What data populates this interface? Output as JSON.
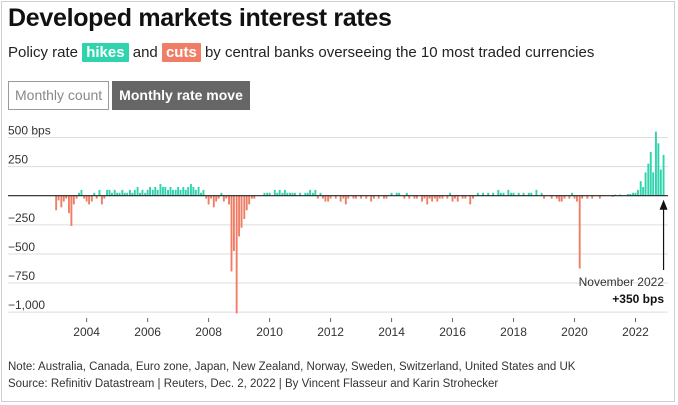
{
  "header": {
    "title": "Developed markets interest rates",
    "subtitle_before": "Policy rate",
    "hikes_label": "hikes",
    "and_word": "and",
    "cuts_label": "cuts",
    "subtitle_after": "by central banks overseeing the 10 most traded currencies"
  },
  "tabs": [
    {
      "label": "Monthly count",
      "active": false
    },
    {
      "label": "Monthly rate move",
      "active": true
    }
  ],
  "colors": {
    "hike": "#2fd3ac",
    "cut": "#f07d66",
    "gridline": "#dddddd",
    "zero": "#222222"
  },
  "chart_data": {
    "type": "bar",
    "title": "",
    "xlabel": "",
    "ylabel": "",
    "unit": "bps",
    "ylim": [
      -1050,
      650
    ],
    "xlim": [
      2002.7,
      2023.0
    ],
    "yticks": [
      500,
      250,
      0,
      -250,
      -500,
      -750,
      -1000
    ],
    "ytick_labels": [
      "500 bps",
      "250",
      "",
      "−250",
      "−500",
      "−750",
      "−1,000"
    ],
    "xticks": [
      2004,
      2006,
      2008,
      2010,
      2012,
      2014,
      2016,
      2018,
      2020,
      2022
    ],
    "xtick_labels": [
      "2004",
      "2006",
      "2008",
      "2010",
      "2012",
      "2014",
      "2016",
      "2018",
      "2020",
      "2022"
    ],
    "grid": true,
    "legend": "none",
    "bars": [
      {
        "t": 2003.0,
        "v": -125
      },
      {
        "t": 2003.08,
        "v": -40
      },
      {
        "t": 2003.17,
        "v": -100
      },
      {
        "t": 2003.25,
        "v": -50
      },
      {
        "t": 2003.33,
        "v": -25
      },
      {
        "t": 2003.42,
        "v": -150
      },
      {
        "t": 2003.5,
        "v": -260
      },
      {
        "t": 2003.58,
        "v": -75
      },
      {
        "t": 2003.67,
        "v": -25
      },
      {
        "t": 2003.75,
        "v": 25
      },
      {
        "t": 2003.83,
        "v": 50
      },
      {
        "t": 2003.92,
        "v": -25
      },
      {
        "t": 2004.0,
        "v": -50
      },
      {
        "t": 2004.08,
        "v": -75
      },
      {
        "t": 2004.17,
        "v": -50
      },
      {
        "t": 2004.25,
        "v": 25
      },
      {
        "t": 2004.33,
        "v": -25
      },
      {
        "t": 2004.42,
        "v": 50
      },
      {
        "t": 2004.5,
        "v": -75
      },
      {
        "t": 2004.58,
        "v": -25
      },
      {
        "t": 2004.67,
        "v": 50
      },
      {
        "t": 2004.75,
        "v": 50
      },
      {
        "t": 2004.83,
        "v": 25
      },
      {
        "t": 2004.92,
        "v": 50
      },
      {
        "t": 2005.0,
        "v": 25
      },
      {
        "t": 2005.08,
        "v": 25
      },
      {
        "t": 2005.17,
        "v": 50
      },
      {
        "t": 2005.25,
        "v": 25
      },
      {
        "t": 2005.33,
        "v": 25
      },
      {
        "t": 2005.42,
        "v": 50
      },
      {
        "t": 2005.5,
        "v": 25
      },
      {
        "t": 2005.58,
        "v": 50
      },
      {
        "t": 2005.67,
        "v": 75
      },
      {
        "t": 2005.75,
        "v": 25
      },
      {
        "t": 2005.83,
        "v": 50
      },
      {
        "t": 2005.92,
        "v": 25
      },
      {
        "t": 2006.0,
        "v": 50
      },
      {
        "t": 2006.08,
        "v": 75
      },
      {
        "t": 2006.17,
        "v": 50
      },
      {
        "t": 2006.25,
        "v": 75
      },
      {
        "t": 2006.33,
        "v": 50
      },
      {
        "t": 2006.42,
        "v": 100
      },
      {
        "t": 2006.5,
        "v": 75
      },
      {
        "t": 2006.58,
        "v": 75
      },
      {
        "t": 2006.67,
        "v": 50
      },
      {
        "t": 2006.75,
        "v": 75
      },
      {
        "t": 2006.83,
        "v": 50
      },
      {
        "t": 2006.92,
        "v": 50
      },
      {
        "t": 2007.0,
        "v": 75
      },
      {
        "t": 2007.08,
        "v": 50
      },
      {
        "t": 2007.17,
        "v": 75
      },
      {
        "t": 2007.25,
        "v": 50
      },
      {
        "t": 2007.33,
        "v": 75
      },
      {
        "t": 2007.42,
        "v": 100
      },
      {
        "t": 2007.5,
        "v": 75
      },
      {
        "t": 2007.58,
        "v": 50
      },
      {
        "t": 2007.67,
        "v": 75
      },
      {
        "t": 2007.75,
        "v": 25
      },
      {
        "t": 2007.83,
        "v": 50
      },
      {
        "t": 2007.92,
        "v": -25
      },
      {
        "t": 2008.0,
        "v": -75
      },
      {
        "t": 2008.08,
        "v": -25
      },
      {
        "t": 2008.17,
        "v": -100
      },
      {
        "t": 2008.25,
        "v": -50
      },
      {
        "t": 2008.33,
        "v": -25
      },
      {
        "t": 2008.42,
        "v": 25
      },
      {
        "t": 2008.5,
        "v": -50
      },
      {
        "t": 2008.58,
        "v": -25
      },
      {
        "t": 2008.67,
        "v": -75
      },
      {
        "t": 2008.75,
        "v": -650
      },
      {
        "t": 2008.83,
        "v": -475
      },
      {
        "t": 2008.92,
        "v": -1010
      },
      {
        "t": 2009.0,
        "v": -350
      },
      {
        "t": 2009.08,
        "v": -275
      },
      {
        "t": 2009.17,
        "v": -200
      },
      {
        "t": 2009.25,
        "v": -125
      },
      {
        "t": 2009.33,
        "v": -75
      },
      {
        "t": 2009.42,
        "v": -25
      },
      {
        "t": 2009.5,
        "v": -25
      },
      {
        "t": 2009.83,
        "v": 25
      },
      {
        "t": 2009.92,
        "v": 25
      },
      {
        "t": 2010.0,
        "v": 25
      },
      {
        "t": 2010.17,
        "v": 50
      },
      {
        "t": 2010.25,
        "v": 25
      },
      {
        "t": 2010.33,
        "v": 50
      },
      {
        "t": 2010.42,
        "v": 25
      },
      {
        "t": 2010.5,
        "v": 50
      },
      {
        "t": 2010.58,
        "v": 25
      },
      {
        "t": 2010.67,
        "v": 25
      },
      {
        "t": 2010.75,
        "v": 25
      },
      {
        "t": 2010.83,
        "v": 25
      },
      {
        "t": 2011.0,
        "v": 25
      },
      {
        "t": 2011.17,
        "v": 25
      },
      {
        "t": 2011.25,
        "v": 25
      },
      {
        "t": 2011.33,
        "v": 50
      },
      {
        "t": 2011.42,
        "v": 25
      },
      {
        "t": 2011.5,
        "v": 50
      },
      {
        "t": 2011.58,
        "v": -25
      },
      {
        "t": 2011.67,
        "v": 25
      },
      {
        "t": 2011.75,
        "v": -25
      },
      {
        "t": 2011.83,
        "v": -50
      },
      {
        "t": 2011.92,
        "v": -50
      },
      {
        "t": 2012.0,
        "v": -25
      },
      {
        "t": 2012.17,
        "v": -25
      },
      {
        "t": 2012.33,
        "v": -50
      },
      {
        "t": 2012.42,
        "v": -25
      },
      {
        "t": 2012.5,
        "v": -75
      },
      {
        "t": 2012.58,
        "v": -25
      },
      {
        "t": 2012.75,
        "v": -25
      },
      {
        "t": 2012.83,
        "v": -25
      },
      {
        "t": 2013.0,
        "v": -25
      },
      {
        "t": 2013.17,
        "v": -25
      },
      {
        "t": 2013.33,
        "v": -50
      },
      {
        "t": 2013.42,
        "v": -25
      },
      {
        "t": 2013.58,
        "v": -25
      },
      {
        "t": 2013.75,
        "v": -25
      },
      {
        "t": 2013.83,
        "v": -25
      },
      {
        "t": 2014.0,
        "v": 25
      },
      {
        "t": 2014.17,
        "v": 25
      },
      {
        "t": 2014.25,
        "v": 25
      },
      {
        "t": 2014.42,
        "v": -25
      },
      {
        "t": 2014.5,
        "v": 25
      },
      {
        "t": 2014.58,
        "v": -25
      },
      {
        "t": 2014.75,
        "v": -25
      },
      {
        "t": 2014.83,
        "v": -25
      },
      {
        "t": 2015.0,
        "v": -50
      },
      {
        "t": 2015.08,
        "v": -25
      },
      {
        "t": 2015.17,
        "v": -75
      },
      {
        "t": 2015.25,
        "v": -25
      },
      {
        "t": 2015.33,
        "v": -50
      },
      {
        "t": 2015.42,
        "v": -25
      },
      {
        "t": 2015.5,
        "v": -50
      },
      {
        "t": 2015.58,
        "v": -25
      },
      {
        "t": 2015.67,
        "v": -25
      },
      {
        "t": 2015.83,
        "v": -25
      },
      {
        "t": 2015.92,
        "v": 25
      },
      {
        "t": 2016.0,
        "v": -50
      },
      {
        "t": 2016.08,
        "v": -25
      },
      {
        "t": 2016.17,
        "v": -50
      },
      {
        "t": 2016.33,
        "v": -25
      },
      {
        "t": 2016.42,
        "v": -25
      },
      {
        "t": 2016.58,
        "v": -75
      },
      {
        "t": 2016.67,
        "v": -25
      },
      {
        "t": 2016.83,
        "v": 25
      },
      {
        "t": 2017.0,
        "v": 25
      },
      {
        "t": 2017.17,
        "v": 25
      },
      {
        "t": 2017.33,
        "v": 25
      },
      {
        "t": 2017.5,
        "v": 50
      },
      {
        "t": 2017.58,
        "v": 25
      },
      {
        "t": 2017.67,
        "v": 25
      },
      {
        "t": 2017.83,
        "v": 50
      },
      {
        "t": 2017.92,
        "v": 25
      },
      {
        "t": 2018.0,
        "v": 25
      },
      {
        "t": 2018.17,
        "v": 25
      },
      {
        "t": 2018.33,
        "v": 25
      },
      {
        "t": 2018.5,
        "v": 25
      },
      {
        "t": 2018.58,
        "v": 25
      },
      {
        "t": 2018.75,
        "v": 50
      },
      {
        "t": 2018.92,
        "v": 25
      },
      {
        "t": 2019.0,
        "v": -25
      },
      {
        "t": 2019.25,
        "v": -25
      },
      {
        "t": 2019.42,
        "v": -25
      },
      {
        "t": 2019.5,
        "v": -50
      },
      {
        "t": 2019.58,
        "v": -50
      },
      {
        "t": 2019.67,
        "v": -25
      },
      {
        "t": 2019.83,
        "v": -25
      },
      {
        "t": 2019.92,
        "v": 25
      },
      {
        "t": 2020.0,
        "v": -25
      },
      {
        "t": 2020.08,
        "v": -50
      },
      {
        "t": 2020.17,
        "v": -625
      },
      {
        "t": 2020.25,
        "v": -25
      },
      {
        "t": 2020.42,
        "v": -25
      },
      {
        "t": 2020.58,
        "v": -25
      },
      {
        "t": 2020.83,
        "v": -25
      },
      {
        "t": 2021.25,
        "v": -10
      },
      {
        "t": 2021.33,
        "v": 10
      },
      {
        "t": 2021.5,
        "v": 10
      },
      {
        "t": 2021.75,
        "v": 15
      },
      {
        "t": 2021.83,
        "v": 15
      },
      {
        "t": 2021.92,
        "v": 25
      },
      {
        "t": 2022.0,
        "v": 25
      },
      {
        "t": 2022.08,
        "v": 50
      },
      {
        "t": 2022.17,
        "v": 125
      },
      {
        "t": 2022.25,
        "v": 75
      },
      {
        "t": 2022.33,
        "v": 200
      },
      {
        "t": 2022.42,
        "v": 275
      },
      {
        "t": 2022.5,
        "v": 375
      },
      {
        "t": 2022.58,
        "v": 200
      },
      {
        "t": 2022.67,
        "v": 550
      },
      {
        "t": 2022.75,
        "v": 450
      },
      {
        "t": 2022.83,
        "v": 225
      },
      {
        "t": 2022.92,
        "v": 350
      }
    ],
    "annotation": {
      "label": "November 2022",
      "value_label": "+350 bps",
      "t": 2022.92
    }
  },
  "footer": {
    "note": "Note: Australia, Canada, Euro zone, Japan, New Zealand, Norway, Sweden, Switzerland, United States and UK",
    "source": "Source: Refinitiv Datastream | Reuters, Dec. 2, 2022 | By Vincent Flasseur and Karin Strohecker"
  }
}
